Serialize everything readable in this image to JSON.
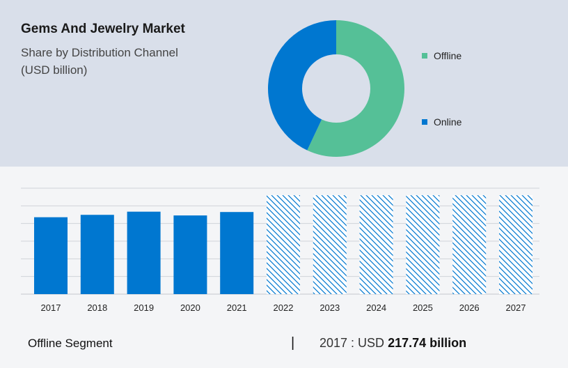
{
  "header": {
    "title": "Gems And Jewelry Market",
    "subtitle_line1": "Share by Distribution Channel",
    "subtitle_line2": "(USD billion)"
  },
  "colors": {
    "offline": "#55c097",
    "online": "#0077d0",
    "bar": "#0077d0",
    "forecast_hatch": "#0077d0",
    "top_panel": "#d9dfea",
    "grid": "#d0d3d8"
  },
  "chart_data": [
    {
      "type": "pie",
      "donut": true,
      "categories": [
        "Offline",
        "Online"
      ],
      "values": [
        57,
        43
      ],
      "legend": [
        "Offline",
        "Online"
      ],
      "legend_position": "right"
    },
    {
      "type": "bar",
      "categories": [
        "2017",
        "2018",
        "2019",
        "2020",
        "2021",
        "2022",
        "2023",
        "2024",
        "2025",
        "2026",
        "2027"
      ],
      "values": [
        217.74,
        224.5,
        233.5,
        222.8,
        232.5,
        280,
        280,
        280,
        280,
        280,
        280
      ],
      "forecast_from": "2022",
      "ylim": [
        0,
        300
      ],
      "grid": true,
      "y_tick_labels_shown": false
    }
  ],
  "footer": {
    "segment_label": "Offline Segment",
    "separator": "|",
    "value_prefix": "2017 : USD ",
    "value_bold": "217.74 billion"
  }
}
